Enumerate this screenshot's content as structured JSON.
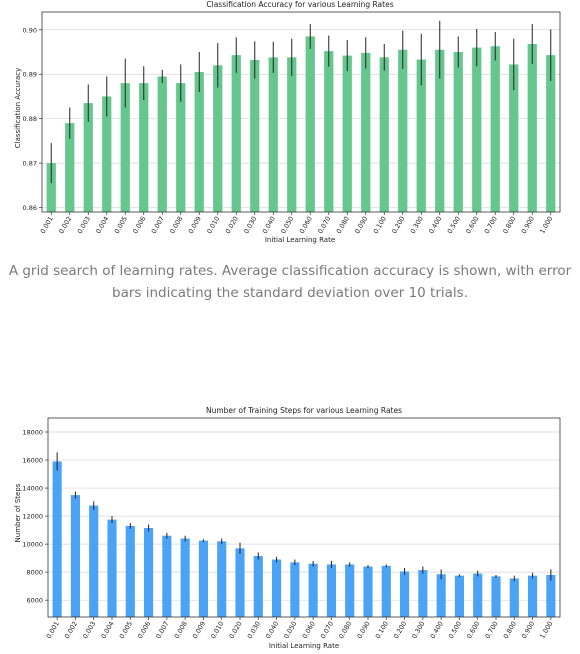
{
  "caption": "A grid search of learning rates. Average classification accuracy is shown, with error bars indicating the standard deviation over 10 trials.",
  "colors": {
    "accuracy_bar": "#66c78e",
    "steps_bar": "#4aa3f5",
    "error_bar": "#222222",
    "grid": "#d6d6d6"
  },
  "chart_data": [
    {
      "type": "bar",
      "title": "Classification Accuracy for various Learning Rates",
      "xlabel": "Initial Learning Rate",
      "ylabel": "Classification Accuracy",
      "ylim": [
        0.859,
        0.904
      ],
      "yticks": [
        "0.86",
        "0.87",
        "0.88",
        "0.89",
        "0.90"
      ],
      "grid": "horizontal",
      "categories": [
        "0.001",
        "0.002",
        "0.003",
        "0.004",
        "0.005",
        "0.006",
        "0.007",
        "0.008",
        "0.009",
        "0.010",
        "0.020",
        "0.030",
        "0.040",
        "0.050",
        "0.060",
        "0.070",
        "0.080",
        "0.090",
        "0.100",
        "0.200",
        "0.300",
        "0.400",
        "0.500",
        "0.600",
        "0.700",
        "0.800",
        "0.900",
        "1.000"
      ],
      "values": [
        0.87,
        0.879,
        0.8835,
        0.885,
        0.888,
        0.888,
        0.8895,
        0.888,
        0.8905,
        0.892,
        0.8943,
        0.8932,
        0.8938,
        0.8938,
        0.8985,
        0.8952,
        0.8942,
        0.8948,
        0.8938,
        0.8955,
        0.8933,
        0.8955,
        0.895,
        0.896,
        0.8963,
        0.8922,
        0.8968,
        0.8943
      ],
      "errors": [
        0.0045,
        0.0035,
        0.0042,
        0.0045,
        0.0055,
        0.0038,
        0.0015,
        0.0042,
        0.0045,
        0.005,
        0.004,
        0.0042,
        0.0035,
        0.0042,
        0.0028,
        0.0035,
        0.0035,
        0.0035,
        0.003,
        0.0043,
        0.0058,
        0.0065,
        0.0035,
        0.0042,
        0.0032,
        0.0058,
        0.0045,
        0.0058
      ]
    },
    {
      "type": "bar",
      "title": "Number of Training Steps for various Learning Rates",
      "xlabel": "Initial Learning Rate",
      "ylabel": "Number of Steps",
      "ylim": [
        4800,
        19000
      ],
      "yticks": [
        "6000",
        "8000",
        "10000",
        "12000",
        "14000",
        "16000",
        "18000"
      ],
      "grid": "horizontal",
      "categories": [
        "0.001",
        "0.002",
        "0.003",
        "0.004",
        "0.005",
        "0.006",
        "0.007",
        "0.008",
        "0.009",
        "0.010",
        "0.020",
        "0.030",
        "0.040",
        "0.050",
        "0.060",
        "0.070",
        "0.080",
        "0.090",
        "0.100",
        "0.200",
        "0.300",
        "0.400",
        "0.500",
        "0.600",
        "0.700",
        "0.800",
        "0.900",
        "1.000"
      ],
      "values": [
        15900,
        13500,
        12750,
        11750,
        11300,
        11150,
        10600,
        10400,
        10250,
        10200,
        9700,
        9150,
        8900,
        8700,
        8600,
        8550,
        8550,
        8400,
        8450,
        8050,
        8150,
        7850,
        7750,
        7900,
        7700,
        7550,
        7750,
        7800
      ],
      "errors": [
        650,
        250,
        300,
        250,
        200,
        250,
        200,
        200,
        100,
        200,
        400,
        250,
        200,
        200,
        200,
        250,
        150,
        100,
        100,
        250,
        250,
        350,
        100,
        200,
        100,
        200,
        200,
        400
      ]
    }
  ]
}
